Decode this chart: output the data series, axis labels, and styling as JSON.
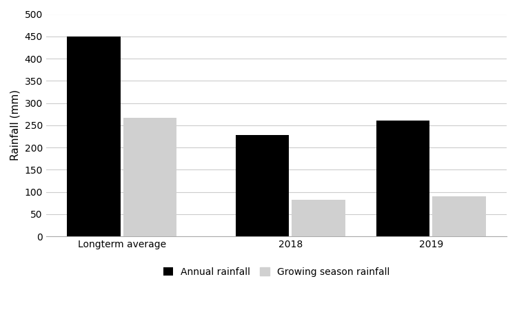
{
  "categories": [
    "Longterm average",
    "2018",
    "2019"
  ],
  "annual_rainfall": [
    450,
    228,
    260
  ],
  "growing_season_rainfall": [
    267,
    82,
    90
  ],
  "annual_color": "#000000",
  "growing_color": "#d0d0d0",
  "ylabel": "Rainfall (mm)",
  "ylim": [
    0,
    500
  ],
  "yticks": [
    0,
    50,
    100,
    150,
    200,
    250,
    300,
    350,
    400,
    450,
    500
  ],
  "legend_labels": [
    "Annual rainfall",
    "Growing season rainfall"
  ],
  "bar_width": 0.38,
  "x_positions": [
    0.5,
    1.7,
    2.7
  ],
  "background_color": "#ffffff",
  "grid_color": "#cccccc",
  "ylabel_fontsize": 11,
  "tick_fontsize": 10,
  "legend_fontsize": 10
}
